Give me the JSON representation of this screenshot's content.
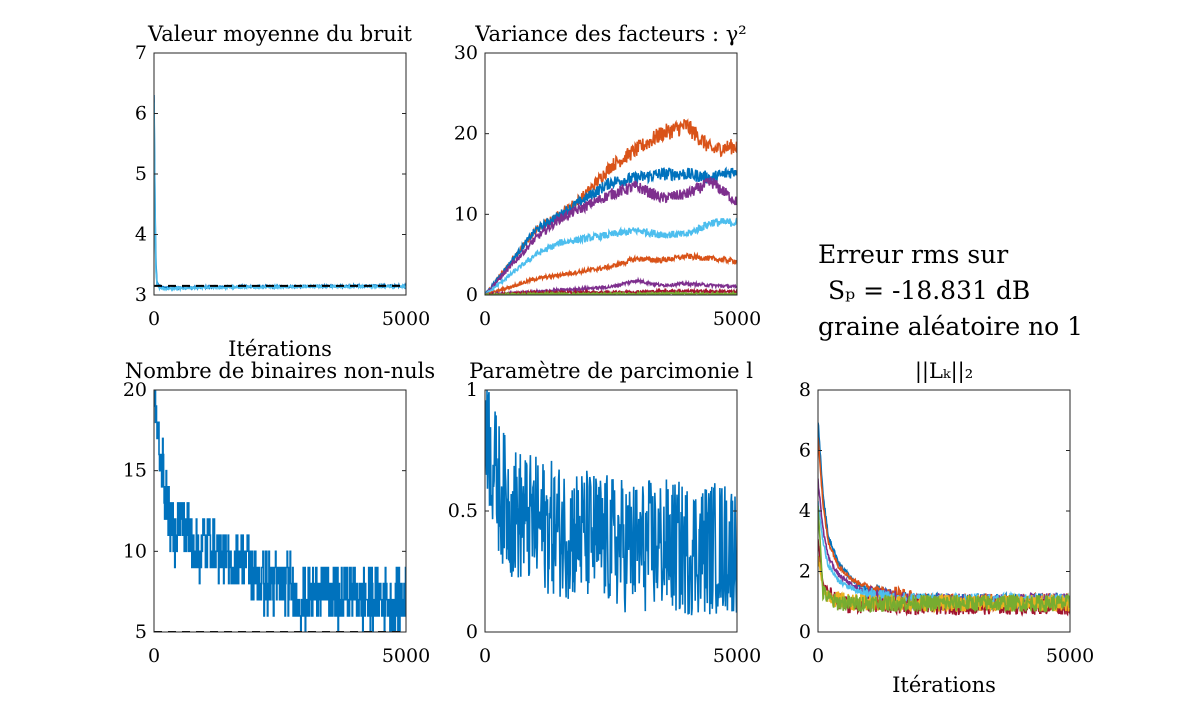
{
  "info": {
    "line1": "Erreur rms sur",
    "line2": "Sₚ = -18.831 dB",
    "line3": "graine aléatoire no 1"
  },
  "chart_data": [
    {
      "type": "line",
      "title": "Valeur moyenne du bruit",
      "xlabel": "Itérations",
      "ylabel": "",
      "xlim": [
        0,
        5000
      ],
      "ylim": [
        3,
        7
      ],
      "xticks": [
        "0",
        "5000"
      ],
      "yticks": [
        "3",
        "4",
        "5",
        "6",
        "7"
      ],
      "series": [
        {
          "color": "#0072BD",
          "x": [
            0,
            10,
            25,
            40,
            60,
            100,
            200,
            500,
            1000,
            2000,
            3000,
            4000,
            5000
          ],
          "y": [
            6.3,
            5.4,
            4.1,
            3.5,
            3.2,
            3.15,
            3.12,
            3.12,
            3.13,
            3.14,
            3.14,
            3.15,
            3.15
          ]
        },
        {
          "color": "#4DBEEE",
          "x": [
            0,
            10,
            25,
            40,
            60,
            100,
            200,
            500,
            1000,
            2000,
            3000,
            4000,
            5000
          ],
          "y": [
            6.2,
            5.3,
            4.0,
            3.4,
            3.18,
            3.12,
            3.1,
            3.11,
            3.12,
            3.13,
            3.14,
            3.14,
            3.14
          ]
        },
        {
          "color": "#000000",
          "dashed": true,
          "x": [
            0,
            5000
          ],
          "y": [
            3.15,
            3.15
          ]
        }
      ]
    },
    {
      "type": "line",
      "title": "Variance des facteurs : γ²",
      "xlabel": "",
      "ylabel": "",
      "xlim": [
        0,
        5000
      ],
      "ylim": [
        0,
        30
      ],
      "xticks": [
        "0",
        "5000"
      ],
      "yticks": [
        "0",
        "10",
        "20",
        "30"
      ],
      "series": [
        {
          "color": "#D95319",
          "x": [
            0,
            500,
            1000,
            1500,
            2000,
            2500,
            3000,
            3500,
            4000,
            4500,
            5000
          ],
          "y": [
            0,
            4,
            8,
            10,
            12.5,
            16,
            18,
            20,
            21,
            18,
            18.5
          ]
        },
        {
          "color": "#0072BD",
          "x": [
            0,
            500,
            1000,
            1500,
            2000,
            2500,
            3000,
            3500,
            4000,
            4500,
            5000
          ],
          "y": [
            0,
            4,
            8,
            10,
            12,
            14,
            14.5,
            15,
            15,
            14.5,
            15.5
          ]
        },
        {
          "color": "#7E2F8E",
          "x": [
            0,
            500,
            1000,
            1500,
            2000,
            2500,
            3000,
            3500,
            4000,
            4500,
            5000
          ],
          "y": [
            0,
            3.5,
            7,
            9.5,
            11,
            12.5,
            13.5,
            12,
            12.5,
            14,
            11.5
          ]
        },
        {
          "color": "#4DBEEE",
          "x": [
            0,
            500,
            1000,
            1500,
            2000,
            2500,
            3000,
            3500,
            4000,
            4500,
            5000
          ],
          "y": [
            0,
            2.5,
            5,
            6.5,
            7,
            7.5,
            8,
            7.5,
            7.5,
            9,
            9
          ]
        },
        {
          "color": "#D95319",
          "x": [
            0,
            500,
            1000,
            1500,
            2000,
            2500,
            3000,
            3500,
            4000,
            4500,
            5000
          ],
          "y": [
            0,
            1,
            2,
            2.5,
            3,
            3.5,
            4.5,
            4.3,
            4.8,
            4.5,
            4.2
          ]
        },
        {
          "color": "#7E2F8E",
          "x": [
            0,
            500,
            1000,
            1500,
            2000,
            2500,
            3000,
            3500,
            4000,
            4500,
            5000
          ],
          "y": [
            0,
            0.2,
            0.4,
            0.6,
            0.8,
            1,
            1.8,
            1.2,
            1.4,
            1.2,
            1
          ]
        },
        {
          "color": "#A2142F",
          "x": [
            0,
            1000,
            2000,
            3000,
            4000,
            5000
          ],
          "y": [
            0,
            0.3,
            0.3,
            0.4,
            0.5,
            0.4
          ]
        },
        {
          "color": "#77AC30",
          "x": [
            0,
            1000,
            2000,
            3000,
            4000,
            5000
          ],
          "y": [
            0,
            0.1,
            0.1,
            0.15,
            0.15,
            0.1
          ]
        }
      ]
    },
    {
      "type": "line",
      "title": "Nombre de binaires non-nuls",
      "xlabel": "",
      "ylabel": "",
      "xlim": [
        0,
        5000
      ],
      "ylim": [
        5,
        20
      ],
      "xticks": [
        "0",
        "5000"
      ],
      "yticks": [
        "5",
        "10",
        "15",
        "20"
      ],
      "series": [
        {
          "color": "#0072BD",
          "x": [
            0,
            100,
            200,
            300,
            400,
            500,
            700,
            900,
            1100,
            1300,
            1500,
            1700,
            1900,
            2100,
            2300,
            2500,
            2700,
            2900,
            3100,
            3300,
            3500,
            3700,
            3900,
            4100,
            4300,
            4500,
            4700,
            4900,
            5000
          ],
          "y": [
            19,
            17,
            14,
            12,
            11,
            12,
            11,
            10,
            11,
            10,
            9,
            10,
            9,
            8,
            8,
            8,
            8,
            7,
            7,
            8,
            7,
            7,
            8,
            7,
            7,
            7,
            7,
            7,
            7
          ]
        },
        {
          "color": "#000000",
          "dashed": true,
          "x": [
            0,
            5000
          ],
          "y": [
            5,
            5
          ]
        }
      ]
    },
    {
      "type": "line",
      "title": "Paramètre de parcimonie l",
      "xlabel": "",
      "ylabel": "",
      "xlim": [
        0,
        5000
      ],
      "ylim": [
        0,
        1
      ],
      "xticks": [
        "0",
        "5000"
      ],
      "yticks": [
        "0",
        "0.5",
        "1"
      ],
      "series": [
        {
          "color": "#0072BD",
          "x": [
            0,
            100,
            200,
            300,
            500,
            800,
            1000,
            1500,
            2000,
            2500,
            3000,
            3500,
            4000,
            4500,
            5000
          ],
          "y": [
            0.95,
            0.75,
            0.65,
            0.58,
            0.5,
            0.47,
            0.45,
            0.42,
            0.4,
            0.37,
            0.35,
            0.36,
            0.34,
            0.35,
            0.35
          ]
        }
      ]
    },
    {
      "type": "line",
      "title": "||Lₖ||₂",
      "xlabel": "Itérations",
      "ylabel": "",
      "xlim": [
        0,
        5000
      ],
      "ylim": [
        0,
        8
      ],
      "xticks": [
        "0",
        "5000"
      ],
      "yticks": [
        "0",
        "2",
        "4",
        "6",
        "8"
      ],
      "series": [
        {
          "color": "#0072BD",
          "x": [
            0,
            100,
            200,
            400,
            700,
            1000,
            1500,
            2000,
            5000
          ],
          "y": [
            7,
            4.5,
            3.2,
            2.3,
            1.7,
            1.4,
            1.1,
            1,
            1
          ]
        },
        {
          "color": "#D95319",
          "x": [
            0,
            100,
            200,
            400,
            700,
            1000,
            1500,
            2000,
            5000
          ],
          "y": [
            6.5,
            4.2,
            3,
            2.2,
            1.7,
            1.5,
            1.3,
            1,
            1
          ]
        },
        {
          "color": "#7E2F8E",
          "x": [
            0,
            100,
            200,
            400,
            700,
            1000,
            1500,
            2000,
            5000
          ],
          "y": [
            5,
            3.4,
            2.5,
            1.9,
            1.5,
            1.3,
            1.1,
            1,
            1
          ]
        },
        {
          "color": "#4DBEEE",
          "x": [
            0,
            100,
            200,
            400,
            700,
            1000,
            1500,
            2000,
            5000
          ],
          "y": [
            4.3,
            3,
            2.2,
            1.7,
            1.4,
            1.2,
            1.05,
            1,
            1
          ]
        },
        {
          "color": "#A2142F",
          "x": [
            0,
            100,
            300,
            600,
            1000,
            2000,
            5000
          ],
          "y": [
            3,
            1.6,
            1.1,
            0.9,
            0.9,
            0.85,
            0.85
          ]
        },
        {
          "color": "#EDB120",
          "x": [
            0,
            100,
            300,
            600,
            1000,
            2000,
            5000
          ],
          "y": [
            2.5,
            1.4,
            1.1,
            1,
            0.95,
            0.95,
            0.95
          ]
        },
        {
          "color": "#77AC30",
          "x": [
            0,
            100,
            300,
            600,
            1000,
            2000,
            5000
          ],
          "y": [
            4.2,
            1.3,
            1,
            0.95,
            0.95,
            0.95,
            0.95
          ]
        }
      ]
    }
  ]
}
